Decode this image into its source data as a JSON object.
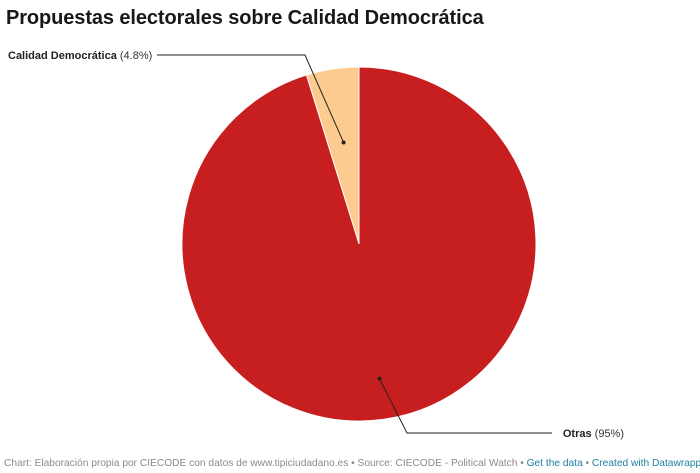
{
  "title": "Propuestas electorales sobre Calidad Democrática",
  "chart_data": {
    "type": "pie",
    "title": "Propuestas electorales sobre Calidad Democrática",
    "slices": [
      {
        "label": "Calidad Democrática",
        "value_text": "(4.8%)",
        "value": 4.8,
        "color": "#fdcb8f"
      },
      {
        "label": "Otras",
        "value_text": "(95%)",
        "value": 95.2,
        "color": "#c71e1f"
      }
    ]
  },
  "footer": {
    "credit": "Chart: Elaboración propia por CIECODE con datos de www.tipiciudadano.es",
    "sep1": " • ",
    "source": "Source: CIECODE - Political Watch",
    "sep2": " • ",
    "get_data": "Get the data",
    "sep3": " • ",
    "created_with": "Created with Datawrapper"
  }
}
